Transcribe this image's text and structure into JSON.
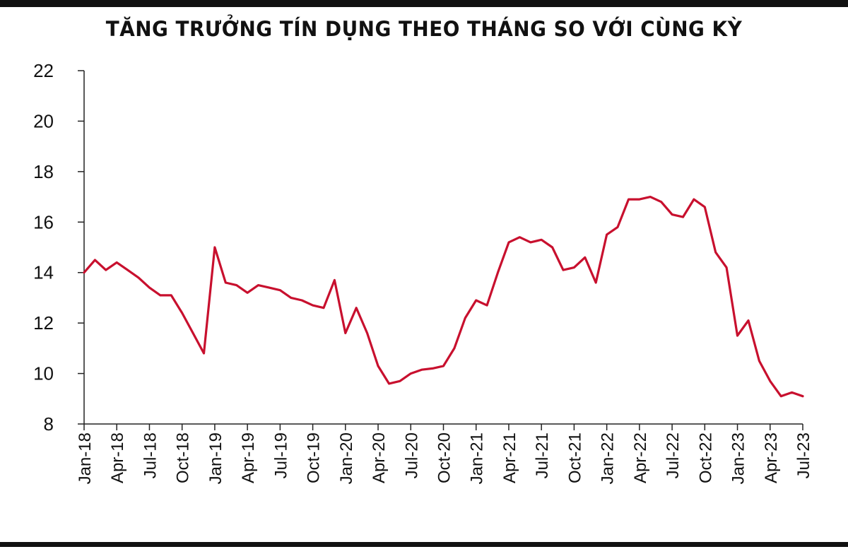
{
  "chart_data": {
    "type": "line",
    "title": "TĂNG TRƯỞNG TÍN DỤNG THEO THÁNG SO VỚI CÙNG KỲ",
    "xlabel": "",
    "ylabel": "",
    "ylim": [
      8,
      22
    ],
    "yticks": [
      "8",
      "10",
      "12",
      "14",
      "16",
      "18",
      "20",
      "22"
    ],
    "xtick_labels": [
      "Jan-18",
      "Apr-18",
      "Jul-18",
      "Oct-18",
      "Jan-19",
      "Apr-19",
      "Jul-19",
      "Oct-19",
      "Jan-20",
      "Apr-20",
      "Jul-20",
      "Oct-20",
      "Jan-21",
      "Apr-21",
      "Jul-21",
      "Oct-21",
      "Jan-22",
      "Apr-22",
      "Jul-22",
      "Oct-22",
      "Jan-23",
      "Apr-23",
      "Jul-23"
    ],
    "grid": false,
    "line_color": "#c8102e",
    "series": [
      {
        "values": [
          14.0,
          14.5,
          14.1,
          14.4,
          14.1,
          13.8,
          13.4,
          13.1,
          13.1,
          12.4,
          11.6,
          10.8,
          15.0,
          13.6,
          13.5,
          13.2,
          13.5,
          13.4,
          13.3,
          13.0,
          12.9,
          12.7,
          12.6,
          13.7,
          11.6,
          12.6,
          11.6,
          10.3,
          9.6,
          9.7,
          10.0,
          10.15,
          10.2,
          10.3,
          11.0,
          12.2,
          12.9,
          12.7,
          14.0,
          15.2,
          15.4,
          15.2,
          15.3,
          15.0,
          14.1,
          14.2,
          14.6,
          13.6,
          15.5,
          15.8,
          16.9,
          16.9,
          17.0,
          16.8,
          16.3,
          16.2,
          16.9,
          16.6,
          14.8,
          14.2,
          11.5,
          12.1,
          10.5,
          9.7,
          9.1,
          9.25,
          9.1
        ]
      }
    ]
  }
}
